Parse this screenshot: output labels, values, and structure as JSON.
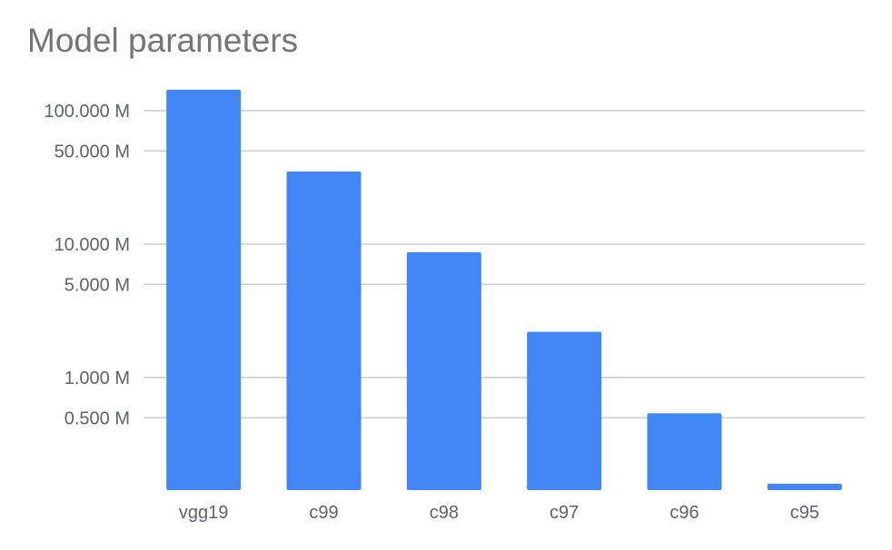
{
  "chart_data": {
    "type": "bar",
    "title": "Model parameters",
    "xlabel": "",
    "ylabel": "",
    "yscale": "log",
    "ylim": [
      0.16,
      150
    ],
    "yticks": [
      100,
      50,
      10,
      5,
      1,
      0.5
    ],
    "ytick_labels": [
      "100.000 M",
      "50.000 M",
      "10.000 M",
      "5.000 M",
      "1.000 M",
      "0.500 M"
    ],
    "categories": [
      "vgg19",
      "c99",
      "c98",
      "c97",
      "c96",
      "c95"
    ],
    "values": [
      143.7,
      35.0,
      8.7,
      2.2,
      0.54,
      0.16
    ],
    "unit": "M",
    "bar_color": "#4285f4",
    "grid": true,
    "legend": "none"
  }
}
